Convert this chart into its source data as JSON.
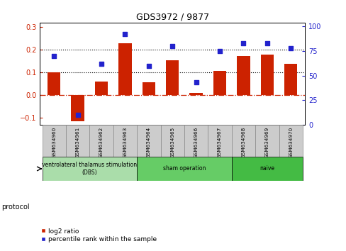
{
  "title": "GDS3972 / 9877",
  "samples": [
    "GSM634960",
    "GSM634961",
    "GSM634962",
    "GSM634963",
    "GSM634964",
    "GSM634965",
    "GSM634966",
    "GSM634967",
    "GSM634968",
    "GSM634969",
    "GSM634970"
  ],
  "log2_ratio": [
    0.1,
    -0.113,
    0.06,
    0.228,
    0.057,
    0.155,
    0.012,
    0.108,
    0.172,
    0.178,
    0.138
  ],
  "percentile_rank": [
    70,
    10,
    62,
    92,
    60,
    80,
    43,
    75,
    83,
    83,
    78
  ],
  "bar_color": "#cc2200",
  "dot_color": "#2222cc",
  "ylim_left": [
    -0.13,
    0.32
  ],
  "ylim_right": [
    0,
    104
  ],
  "yticks_left": [
    -0.1,
    0.0,
    0.1,
    0.2,
    0.3
  ],
  "yticks_right": [
    0,
    25,
    50,
    75,
    100
  ],
  "hline_y": 0.0,
  "hline_dotted": [
    0.1,
    0.2
  ],
  "groups": [
    {
      "label": "ventrolateral thalamus stimulation\n(DBS)",
      "start": 0,
      "end": 3,
      "color": "#aaddaa"
    },
    {
      "label": "sham operation",
      "start": 4,
      "end": 7,
      "color": "#66cc66"
    },
    {
      "label": "naive",
      "start": 8,
      "end": 10,
      "color": "#44bb44"
    }
  ],
  "protocol_label": "protocol",
  "legend_entries": [
    {
      "label": "log2 ratio",
      "color": "#cc2200"
    },
    {
      "label": "percentile rank within the sample",
      "color": "#2222cc"
    }
  ],
  "background_color": "#ffffff",
  "tick_label_color_left": "#cc2200",
  "tick_label_color_right": "#2222cc",
  "box_color": "#cccccc",
  "box_edge": "#888888"
}
